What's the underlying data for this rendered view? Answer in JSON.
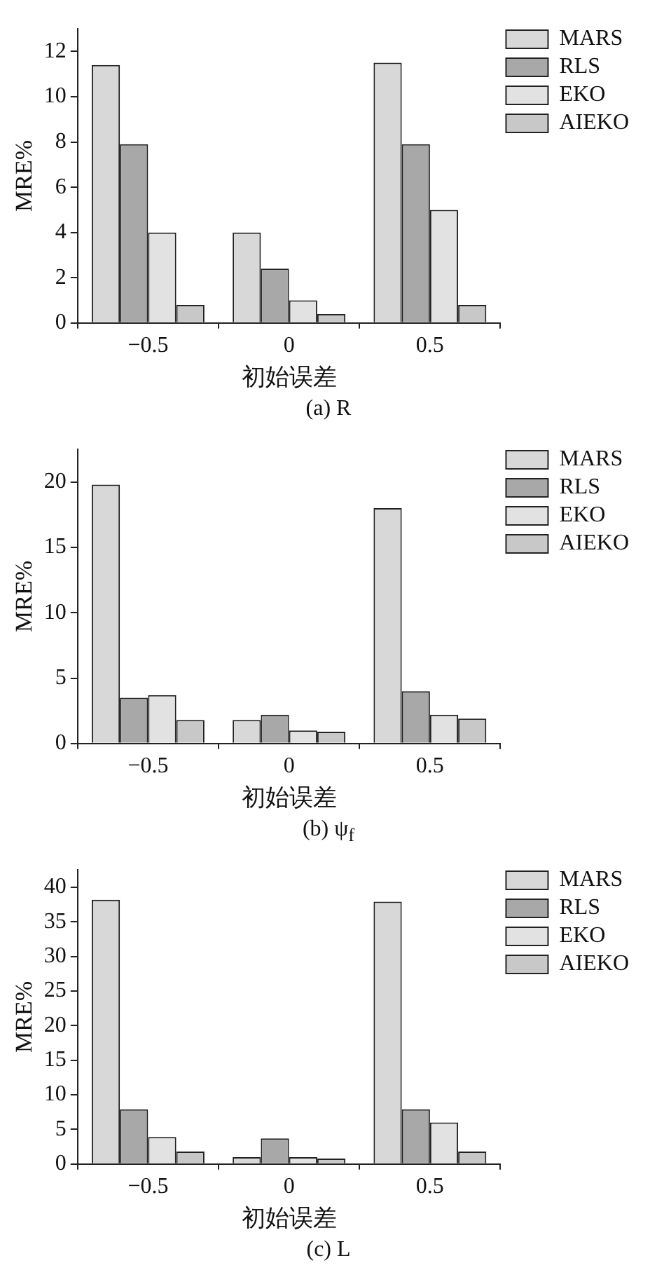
{
  "chart_data": [
    {
      "type": "bar",
      "title": "(a) R",
      "xlabel": "初始误差",
      "ylabel": "MRE%",
      "categories": [
        "−0.5",
        "0",
        "0.5"
      ],
      "series": [
        {
          "name": "MARS",
          "color": "#d8d8d8",
          "values": [
            11.4,
            4.0,
            11.5
          ]
        },
        {
          "name": "RLS",
          "color": "#a8a8a8",
          "values": [
            7.9,
            2.4,
            7.9
          ]
        },
        {
          "name": "EKO",
          "color": "#e2e2e2",
          "values": [
            4.0,
            1.0,
            5.0
          ]
        },
        {
          "name": "AIEKO",
          "color": "#c8c8c8",
          "values": [
            0.8,
            0.4,
            0.8
          ]
        }
      ],
      "ylim": [
        0,
        13
      ],
      "yticks": [
        0,
        2,
        4,
        6,
        8,
        10,
        12
      ],
      "grid": false,
      "legend": "top right"
    },
    {
      "type": "bar",
      "title": "(b) ψ$_{f}$",
      "xlabel": "初始误差",
      "ylabel": "MRE%",
      "categories": [
        "−0.5",
        "0",
        "0.5"
      ],
      "series": [
        {
          "name": "MARS",
          "color": "#d8d8d8",
          "values": [
            19.8,
            1.8,
            18.0
          ]
        },
        {
          "name": "RLS",
          "color": "#a8a8a8",
          "values": [
            3.5,
            2.2,
            4.0
          ]
        },
        {
          "name": "EKO",
          "color": "#e2e2e2",
          "values": [
            3.7,
            1.0,
            2.2
          ]
        },
        {
          "name": "AIEKO",
          "color": "#c8c8c8",
          "values": [
            1.8,
            0.9,
            1.9
          ]
        }
      ],
      "ylim": [
        0,
        22.5
      ],
      "yticks": [
        0,
        5,
        10,
        15,
        20
      ],
      "grid": false,
      "legend": "top right"
    },
    {
      "type": "bar",
      "title": "(c) L",
      "xlabel": "初始误差",
      "ylabel": "MRE%",
      "categories": [
        "−0.5",
        "0",
        "0.5"
      ],
      "series": [
        {
          "name": "MARS",
          "color": "#d8d8d8",
          "values": [
            38.2,
            1.0,
            37.9
          ]
        },
        {
          "name": "RLS",
          "color": "#a8a8a8",
          "values": [
            7.9,
            3.7,
            7.9
          ]
        },
        {
          "name": "EKO",
          "color": "#e2e2e2",
          "values": [
            3.9,
            1.0,
            6.0
          ]
        },
        {
          "name": "AIEKO",
          "color": "#c8c8c8",
          "values": [
            1.8,
            0.8,
            1.8
          ]
        }
      ],
      "ylim": [
        0,
        42.5
      ],
      "yticks": [
        0,
        5,
        10,
        15,
        20,
        25,
        30,
        35,
        40
      ],
      "grid": false,
      "legend": "top right"
    }
  ]
}
